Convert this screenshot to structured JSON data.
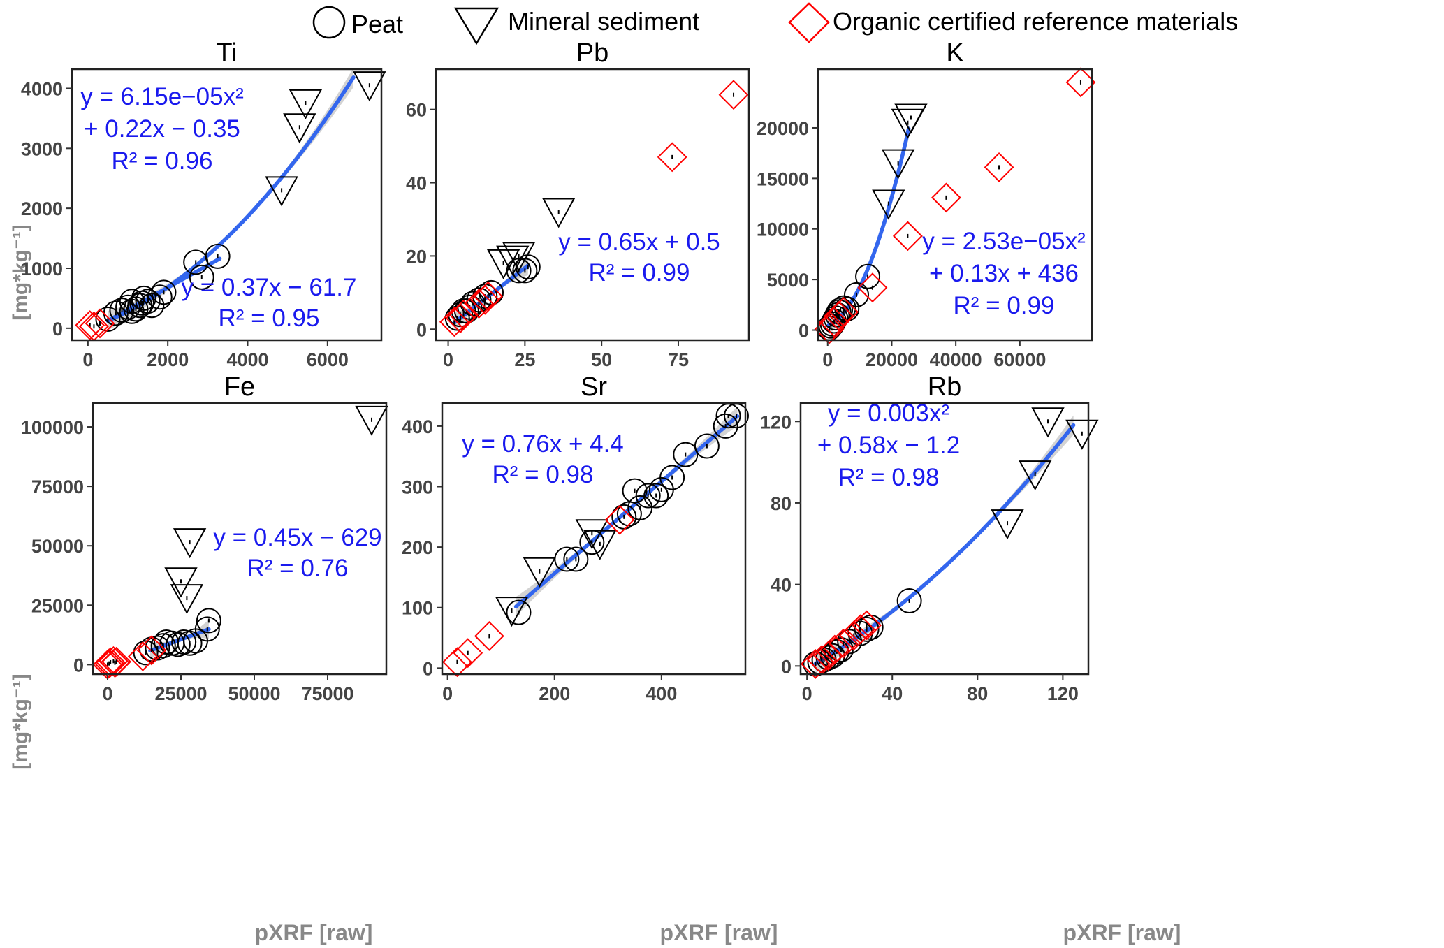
{
  "legend": {
    "items": [
      {
        "label": "Peat",
        "shape": "circle",
        "color": "#000000"
      },
      {
        "label": "Mineral sediment",
        "shape": "triangle-down",
        "color": "#000000"
      },
      {
        "label": "Organic certified reference materials",
        "shape": "diamond",
        "color": "#ff0000"
      }
    ],
    "placement": "top"
  },
  "y_axis_label": "[mg*kg⁻¹]",
  "x_axis_label": "pXRF [raw]",
  "colors": {
    "fit_line": "#3366ee",
    "equation_text": "#1a1aee",
    "confidence_band": "#c8c8c8",
    "crm": "#ff0000",
    "axis_label": "#888888"
  },
  "chart_data": [
    {
      "type": "scatter",
      "title": "Ti",
      "xlim": [
        -400,
        7350
      ],
      "ylim": [
        -200,
        4320
      ],
      "xticks": [
        0,
        2000,
        4000,
        6000
      ],
      "yticks": [
        0,
        1000,
        2000,
        3000,
        4000
      ],
      "xtick_labels": [
        "0",
        "2000",
        "4000",
        "6000"
      ],
      "ytick_labels": [
        "0",
        "1000",
        "2000",
        "3000",
        "4000"
      ],
      "series": [
        {
          "name": "Peat",
          "points": [
            [
              500,
              150
            ],
            [
              700,
              250
            ],
            [
              850,
              300
            ],
            [
              1000,
              350
            ],
            [
              1100,
              450
            ],
            [
              1200,
              320
            ],
            [
              1300,
              380
            ],
            [
              1400,
              500
            ],
            [
              1500,
              450
            ],
            [
              1600,
              380
            ],
            [
              1800,
              520
            ],
            [
              1900,
              600
            ],
            [
              2700,
              1100
            ],
            [
              2850,
              850
            ],
            [
              3250,
              1200
            ],
            [
              1100,
              280
            ],
            [
              1350,
              420
            ]
          ]
        },
        {
          "name": "Mineral sediment",
          "points": [
            [
              4850,
              2300
            ],
            [
              5300,
              3350
            ],
            [
              5450,
              3750
            ],
            [
              7050,
              4050
            ]
          ]
        },
        {
          "name": "Organic certified reference materials",
          "points": [
            [
              50,
              50
            ],
            [
              150,
              30
            ],
            [
              300,
              80
            ]
          ]
        }
      ],
      "fits": [
        {
          "equation_lines": [
            "y = 6.15e−05x²",
            "+ 0.22x − 0.35",
            "R²  = 0.96"
          ],
          "a": 6.15e-05,
          "b": 0.22,
          "c": -0.35,
          "x_range": [
            500,
            6650
          ],
          "band": true
        },
        {
          "equation_lines": [
            "y = 0.37x − 61.7",
            "R²  = 0.95"
          ],
          "a": 0,
          "b": 0.37,
          "c": -61.7,
          "x_range": [
            500,
            3300
          ],
          "band": false
        }
      ]
    },
    {
      "type": "scatter",
      "title": "Pb",
      "xlim": [
        -4,
        98
      ],
      "ylim": [
        -3,
        71
      ],
      "xticks": [
        0,
        25,
        50,
        75
      ],
      "yticks": [
        0,
        20,
        40,
        60
      ],
      "xtick_labels": [
        "0",
        "25",
        "50",
        "75"
      ],
      "ytick_labels": [
        "0",
        "20",
        "40",
        "60"
      ],
      "series": [
        {
          "name": "Peat",
          "points": [
            [
              3,
              3
            ],
            [
              4,
              4
            ],
            [
              5,
              5
            ],
            [
              6,
              5
            ],
            [
              7,
              6
            ],
            [
              8,
              7
            ],
            [
              10,
              8
            ],
            [
              12,
              9
            ],
            [
              14,
              10
            ],
            [
              23,
              16
            ],
            [
              25,
              16
            ],
            [
              26,
              17
            ]
          ]
        },
        {
          "name": "Mineral sediment",
          "points": [
            [
              18,
              18
            ],
            [
              21,
              19
            ],
            [
              23,
              20
            ],
            [
              36,
              32
            ]
          ]
        },
        {
          "name": "Organic certified reference materials",
          "points": [
            [
              2,
              2
            ],
            [
              4,
              3
            ],
            [
              5,
              4
            ],
            [
              10,
              7
            ],
            [
              12,
              8
            ],
            [
              13,
              9
            ],
            [
              73,
              47
            ],
            [
              93,
              64
            ]
          ]
        }
      ],
      "fits": [
        {
          "equation_lines": [
            "y = 0.65x + 0.5",
            "R²  = 0.99"
          ],
          "a": 0,
          "b": 0.65,
          "c": 0.5,
          "x_range": [
            2,
            26
          ],
          "band": true
        }
      ]
    },
    {
      "type": "scatter",
      "title": "K",
      "xlim": [
        -3000,
        82500
      ],
      "ylim": [
        -1000,
        25800
      ],
      "xticks": [
        0,
        20000,
        40000,
        60000
      ],
      "yticks": [
        0,
        5000,
        10000,
        15000,
        20000
      ],
      "xtick_labels": [
        "0",
        "20000",
        "40000",
        "60000"
      ],
      "ytick_labels": [
        "0",
        "5000",
        "10000",
        "15000",
        "20000"
      ],
      "series": [
        {
          "name": "Peat",
          "points": [
            [
              500,
              200
            ],
            [
              1000,
              400
            ],
            [
              1500,
              600
            ],
            [
              2000,
              900
            ],
            [
              2500,
              1200
            ],
            [
              3000,
              1500
            ],
            [
              3500,
              1800
            ],
            [
              4000,
              2000
            ],
            [
              5000,
              2200
            ],
            [
              6000,
              2100
            ],
            [
              9000,
              3500
            ],
            [
              12500,
              5300
            ]
          ]
        },
        {
          "name": "Mineral sediment",
          "points": [
            [
              19000,
              12500
            ],
            [
              22000,
              16500
            ],
            [
              25000,
              20500
            ],
            [
              26000,
              21000
            ]
          ]
        },
        {
          "name": "Organic certified reference materials",
          "points": [
            [
              500,
              100
            ],
            [
              2000,
              800
            ],
            [
              3500,
              1400
            ],
            [
              5000,
              1800
            ],
            [
              14000,
              4200
            ],
            [
              25000,
              9300
            ],
            [
              37000,
              13100
            ],
            [
              53500,
              16100
            ],
            [
              79000,
              24500
            ]
          ]
        }
      ],
      "fits": [
        {
          "equation_lines": [
            "y = 2.53e−05x²",
            "+ 0.13x + 436",
            "R²  = 0.99"
          ],
          "a": 2.53e-05,
          "b": 0.13,
          "c": 436,
          "x_range": [
            300,
            25300
          ],
          "band": true
        }
      ]
    },
    {
      "type": "scatter",
      "title": "Fe",
      "xlim": [
        -5000,
        95000
      ],
      "ylim": [
        -4000,
        110000
      ],
      "xticks": [
        0,
        25000,
        50000,
        75000
      ],
      "yticks": [
        0,
        25000,
        50000,
        75000,
        100000
      ],
      "xtick_labels": [
        "0",
        "25000",
        "50000",
        "75000"
      ],
      "ytick_labels": [
        "0",
        "25000",
        "50000",
        "75000",
        "100000"
      ],
      "series": [
        {
          "name": "Peat",
          "points": [
            [
              13000,
              5000
            ],
            [
              15000,
              6500
            ],
            [
              17000,
              7000
            ],
            [
              19000,
              8000
            ],
            [
              20000,
              9500
            ],
            [
              22000,
              9000
            ],
            [
              24000,
              8500
            ],
            [
              26000,
              9500
            ],
            [
              28000,
              9000
            ],
            [
              30000,
              10000
            ],
            [
              34000,
              15000
            ],
            [
              34500,
              18500
            ]
          ]
        },
        {
          "name": "Mineral sediment",
          "points": [
            [
              25000,
              35000
            ],
            [
              27000,
              28000
            ],
            [
              28000,
              51500
            ],
            [
              90000,
              103000
            ]
          ]
        },
        {
          "name": "Organic certified reference materials",
          "points": [
            [
              0,
              0
            ],
            [
              500,
              500
            ],
            [
              1000,
              1000
            ],
            [
              2000,
              1500
            ],
            [
              2500,
              800
            ],
            [
              3000,
              1200
            ],
            [
              12000,
              3500
            ],
            [
              15000,
              6000
            ]
          ]
        }
      ],
      "fits": [
        {
          "equation_lines": [
            "y = 0.45x − 629",
            "R²  = 0.76"
          ],
          "a": 0,
          "b": 0.45,
          "c": -629,
          "x_range": [
            14500,
            34500
          ],
          "band": true
        }
      ]
    },
    {
      "type": "scatter",
      "title": "Sr",
      "xlim": [
        -10,
        557
      ],
      "ylim": [
        -10,
        438
      ],
      "xticks": [
        0,
        200,
        400
      ],
      "yticks": [
        0,
        100,
        200,
        300,
        400
      ],
      "xtick_labels": [
        "0",
        "200",
        "400"
      ],
      "ytick_labels": [
        "0",
        "100",
        "200",
        "300",
        "400"
      ],
      "series": [
        {
          "name": "Peat",
          "points": [
            [
              133,
              92
            ],
            [
              223,
              180
            ],
            [
              240,
              180
            ],
            [
              270,
              208
            ],
            [
              330,
              250
            ],
            [
              340,
              255
            ],
            [
              350,
              293
            ],
            [
              360,
              265
            ],
            [
              375,
              285
            ],
            [
              390,
              285
            ],
            [
              400,
              295
            ],
            [
              420,
              315
            ],
            [
              445,
              353
            ],
            [
              485,
              367
            ],
            [
              520,
              400
            ],
            [
              525,
              417
            ],
            [
              540,
              417
            ]
          ]
        },
        {
          "name": "Mineral sediment",
          "points": [
            [
              120,
              95
            ],
            [
              172,
              160
            ],
            [
              270,
              223
            ],
            [
              285,
              205
            ]
          ]
        },
        {
          "name": "Organic certified reference materials",
          "points": [
            [
              18,
              10
            ],
            [
              38,
              25
            ],
            [
              78,
              53
            ],
            [
              322,
              245
            ]
          ]
        }
      ],
      "fits": [
        {
          "equation_lines": [
            "y = 0.76x + 4.4",
            "R²  = 0.98"
          ],
          "a": 0,
          "b": 0.76,
          "c": 4.4,
          "x_range": [
            128,
            542
          ],
          "band": true
        }
      ]
    },
    {
      "type": "scatter",
      "title": "Rb",
      "xlim": [
        -3,
        132
      ],
      "ylim": [
        -4,
        129
      ],
      "xticks": [
        0,
        40,
        80,
        120
      ],
      "yticks": [
        0,
        40,
        80,
        120
      ],
      "xtick_labels": [
        "0",
        "40",
        "80",
        "120"
      ],
      "ytick_labels": [
        "0",
        "40",
        "80",
        "120"
      ],
      "series": [
        {
          "name": "Peat",
          "points": [
            [
              4,
              1
            ],
            [
              6,
              2
            ],
            [
              8,
              3
            ],
            [
              10,
              4
            ],
            [
              12,
              5
            ],
            [
              14,
              7
            ],
            [
              16,
              8
            ],
            [
              20,
              12
            ],
            [
              25,
              16
            ],
            [
              28,
              18
            ],
            [
              30,
              19
            ],
            [
              48,
              32
            ]
          ]
        },
        {
          "name": "Mineral sediment",
          "points": [
            [
              94,
              70
            ],
            [
              107,
              94
            ],
            [
              113,
              120
            ],
            [
              129,
              114
            ]
          ]
        },
        {
          "name": "Organic certified reference materials",
          "points": [
            [
              4,
              1
            ],
            [
              7,
              3
            ],
            [
              10,
              5
            ],
            [
              13,
              8
            ],
            [
              17,
              11
            ],
            [
              22,
              15
            ],
            [
              25,
              18
            ],
            [
              28,
              20
            ]
          ]
        }
      ],
      "fits": [
        {
          "equation_lines": [
            "y = 0.003x²",
            "+ 0.58x − 1.2",
            "R²  = 0.98"
          ],
          "a": 0.003,
          "b": 0.58,
          "c": -1.2,
          "x_range": [
            4,
            125
          ],
          "band": true
        }
      ]
    }
  ]
}
